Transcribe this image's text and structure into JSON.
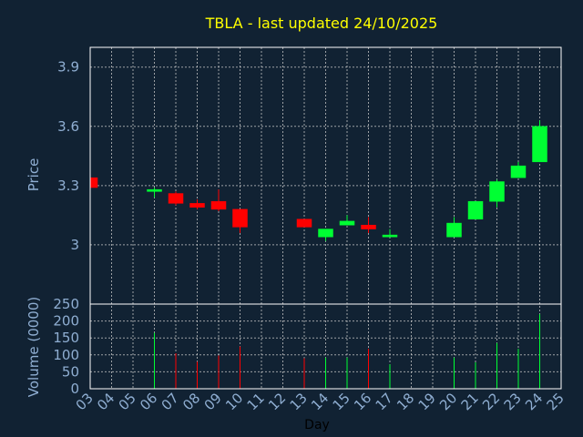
{
  "chart_data": {
    "type": "candlestick",
    "title": "TBLA - last updated 24/10/2025",
    "xlabel": "Day",
    "ylabel_price": "Price",
    "ylabel_volume": "Volume (0000)",
    "price_ticks": [
      "3",
      "3.3",
      "3.6",
      "3.9"
    ],
    "volume_ticks": [
      "0",
      "50",
      "100",
      "150",
      "200",
      "250"
    ],
    "ylim_price": [
      2.7,
      4.0
    ],
    "ylim_volume": [
      0,
      250
    ],
    "x_ticks": [
      "03",
      "04",
      "05",
      "06",
      "07",
      "08",
      "09",
      "10",
      "11",
      "12",
      "13",
      "14",
      "15",
      "16",
      "17",
      "18",
      "19",
      "20",
      "21",
      "22",
      "23",
      "24",
      "25"
    ],
    "grid": true,
    "colors": {
      "up": "#00ff33",
      "down": "#ff0000",
      "background": "#112233",
      "title": "#ffff00",
      "axis_text": "#8faed2"
    },
    "candles": [
      {
        "day": "03",
        "open": 3.34,
        "high": 3.34,
        "low": 3.29,
        "close": 3.29,
        "volume": 0
      },
      {
        "day": "06",
        "open": 3.27,
        "high": 3.29,
        "low": 3.24,
        "close": 3.28,
        "volume": 165
      },
      {
        "day": "07",
        "open": 3.26,
        "high": 3.27,
        "low": 3.2,
        "close": 3.21,
        "volume": 105
      },
      {
        "day": "08",
        "open": 3.21,
        "high": 3.23,
        "low": 3.18,
        "close": 3.19,
        "volume": 80
      },
      {
        "day": "09",
        "open": 3.22,
        "high": 3.28,
        "low": 3.17,
        "close": 3.18,
        "volume": 98
      },
      {
        "day": "10",
        "open": 3.18,
        "high": 3.18,
        "low": 3.06,
        "close": 3.09,
        "volume": 125
      },
      {
        "day": "13",
        "open": 3.13,
        "high": 3.13,
        "low": 3.09,
        "close": 3.09,
        "volume": 90
      },
      {
        "day": "14",
        "open": 3.04,
        "high": 3.08,
        "low": 3.02,
        "close": 3.08,
        "volume": 92
      },
      {
        "day": "15",
        "open": 3.1,
        "high": 3.15,
        "low": 3.1,
        "close": 3.12,
        "volume": 92
      },
      {
        "day": "16",
        "open": 3.1,
        "high": 3.14,
        "low": 3.06,
        "close": 3.08,
        "volume": 118
      },
      {
        "day": "17",
        "open": 3.04,
        "high": 3.08,
        "low": 3.04,
        "close": 3.05,
        "volume": 72
      },
      {
        "day": "20",
        "open": 3.04,
        "high": 3.14,
        "low": 3.04,
        "close": 3.11,
        "volume": 92
      },
      {
        "day": "21",
        "open": 3.13,
        "high": 3.22,
        "low": 3.13,
        "close": 3.22,
        "volume": 78
      },
      {
        "day": "22",
        "open": 3.22,
        "high": 3.33,
        "low": 3.19,
        "close": 3.32,
        "volume": 135
      },
      {
        "day": "23",
        "open": 3.34,
        "high": 3.42,
        "low": 3.34,
        "close": 3.4,
        "volume": 118
      },
      {
        "day": "24",
        "open": 3.42,
        "high": 3.63,
        "low": 3.42,
        "close": 3.6,
        "volume": 220
      }
    ]
  }
}
